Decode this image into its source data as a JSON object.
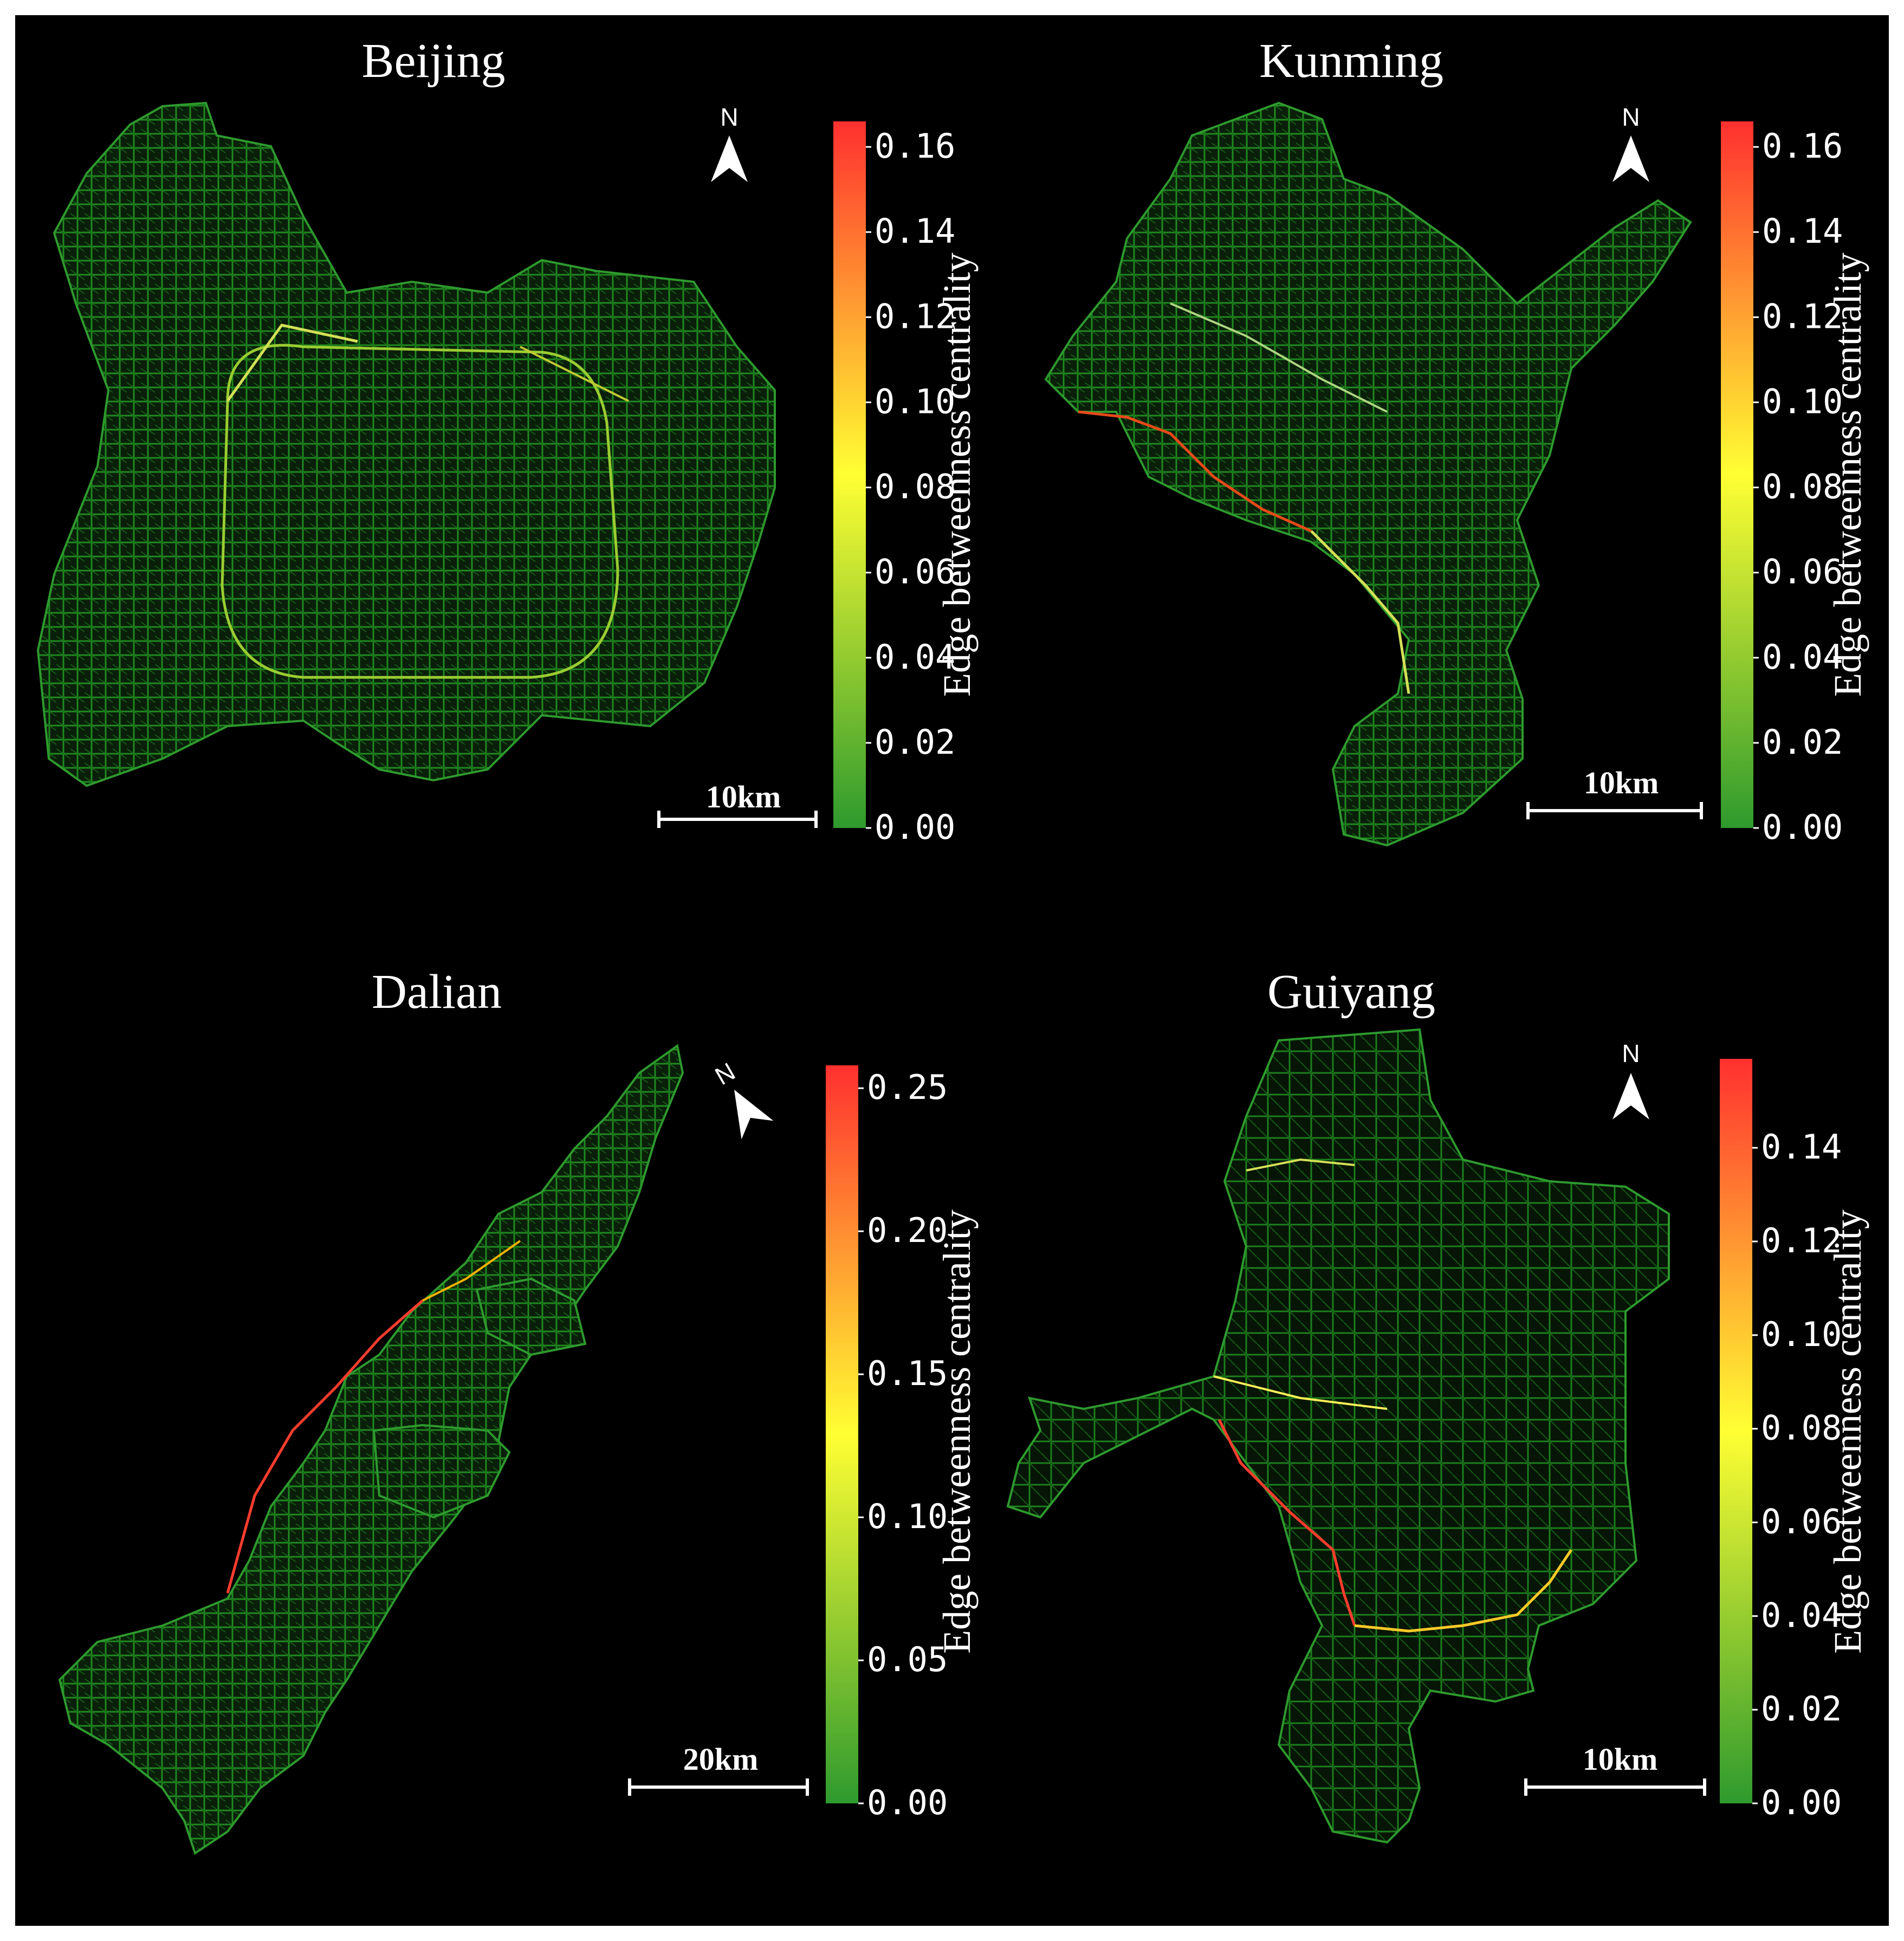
{
  "colors": {
    "background": "#000000",
    "colormap_low": "#2e9a2e",
    "colormap_mid": "#ffff33",
    "colormap_high": "#ff3030",
    "network": "#1f8a1f"
  },
  "colorbar_label": "Edge betweenness centrality",
  "north_symbol": "N",
  "panels": [
    {
      "city": "Beijing",
      "scale_bar": "10km",
      "colorbar_ticks": [
        "0.16",
        "0.14",
        "0.12",
        "0.10",
        "0.08",
        "0.06",
        "0.04",
        "0.02",
        "0.00"
      ],
      "colorbar_max": 0.166,
      "north_arrow_rotation_deg": 0
    },
    {
      "city": "Kunming",
      "scale_bar": "10km",
      "colorbar_ticks": [
        "0.16",
        "0.14",
        "0.12",
        "0.10",
        "0.08",
        "0.06",
        "0.04",
        "0.02",
        "0.00"
      ],
      "colorbar_max": 0.166,
      "north_arrow_rotation_deg": 0
    },
    {
      "city": "Dalian",
      "scale_bar": "20km",
      "colorbar_ticks": [
        "0.25",
        "0.20",
        "0.15",
        "0.10",
        "0.05",
        "0.00"
      ],
      "colorbar_max": 0.258,
      "north_arrow_rotation_deg": -30
    },
    {
      "city": "Guiyang",
      "scale_bar": "10km",
      "colorbar_ticks": [
        "0.14",
        "0.12",
        "0.10",
        "0.08",
        "0.06",
        "0.04",
        "0.02",
        "0.00"
      ],
      "colorbar_max": 0.159,
      "north_arrow_rotation_deg": 0
    }
  ]
}
